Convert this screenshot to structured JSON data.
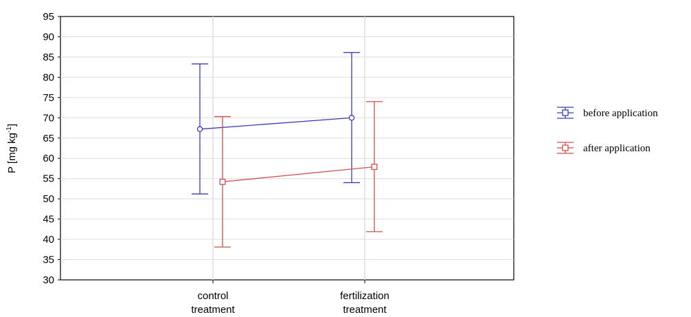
{
  "chart_data": {
    "type": "line",
    "title": "",
    "xlabel": "",
    "ylabel": "P [mg kg",
    "ylabel_sup": "-1",
    "ylabel_close": "]",
    "ylim": [
      30,
      95
    ],
    "yticks": [
      30,
      35,
      40,
      45,
      50,
      55,
      60,
      65,
      70,
      75,
      80,
      85,
      90,
      95
    ],
    "grid": true,
    "legend_position": "right",
    "categories": [
      {
        "line1": "control",
        "line2": "treatment"
      },
      {
        "line1": "fertilization",
        "line2": "treatment"
      }
    ],
    "series": [
      {
        "name": "before application",
        "color": "#3a3ab8",
        "marker": "circle",
        "values": [
          67.2,
          70.0
        ],
        "lower": [
          51.2,
          54.0
        ],
        "upper": [
          83.3,
          86.1
        ]
      },
      {
        "name": "after application",
        "color": "#d24b4b",
        "marker": "square",
        "values": [
          54.2,
          57.9
        ],
        "lower": [
          38.1,
          41.9
        ],
        "upper": [
          70.3,
          74.0
        ]
      }
    ]
  }
}
